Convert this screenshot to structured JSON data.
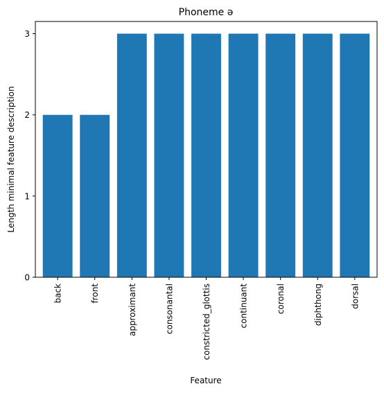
{
  "chart_data": {
    "type": "bar",
    "title": "Phoneme ə",
    "xlabel": "Feature",
    "ylabel": "Length minimal feature description",
    "categories": [
      "back",
      "front",
      "approximant",
      "consonantal",
      "constricted_glottis",
      "continuant",
      "coronal",
      "diphthong",
      "dorsal"
    ],
    "values": [
      2,
      2,
      3,
      3,
      3,
      3,
      3,
      3,
      3
    ],
    "ylim": [
      0,
      3.15
    ],
    "yticks": [
      0,
      1,
      2,
      3
    ],
    "grid": false,
    "bar_color": "#1f77b4"
  }
}
